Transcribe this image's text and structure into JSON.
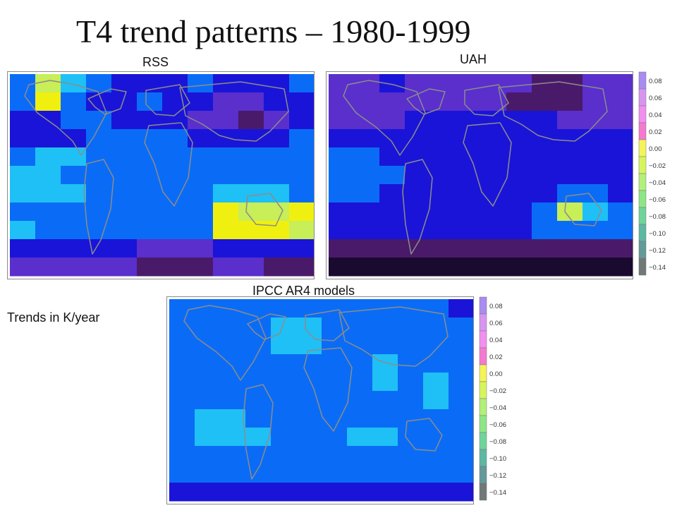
{
  "page": {
    "title": "T4 trend patterns – 1980-1999",
    "units_note": "Trends in K/year"
  },
  "colors": {
    "palette": [
      "#1a0a30",
      "#4a1a6a",
      "#5a2fcc",
      "#1a14d8",
      "#0a6cf6",
      "#1fc0f6",
      "#f0f010",
      "#c8ee58"
    ],
    "colorbar": [
      {
        "value": 0.08,
        "color": "#a98cf0"
      },
      {
        "value": 0.06,
        "color": "#d795f0"
      },
      {
        "value": 0.04,
        "color": "#f28ff0"
      },
      {
        "value": 0.02,
        "color": "#f579cf"
      },
      {
        "value": 0.0,
        "color": "#f4f45a"
      },
      {
        "value": -0.02,
        "color": "#d6f55c"
      },
      {
        "value": -0.04,
        "color": "#b2f078"
      },
      {
        "value": -0.06,
        "color": "#8de686"
      },
      {
        "value": -0.08,
        "color": "#6fd49a"
      },
      {
        "value": -0.1,
        "color": "#5cb8a2"
      },
      {
        "value": -0.12,
        "color": "#64999c"
      },
      {
        "value": -0.14,
        "color": "#707878"
      }
    ]
  },
  "chart_data": [
    {
      "type": "heatmap",
      "title": "RSS",
      "xlabel": "",
      "ylabel": "",
      "grid": false,
      "x": [
        -180,
        -150,
        -120,
        -90,
        -60,
        -30,
        0,
        30,
        60,
        90,
        120,
        150
      ],
      "y": [
        75,
        60,
        45,
        30,
        15,
        0,
        -15,
        -30,
        -45,
        -60,
        -70
      ],
      "colors": [
        "#1a0a30",
        "#4a1a6a",
        "#5a2fcc",
        "#1a14d8",
        "#0a6cf6",
        "#1fc0f6",
        "#f0f010",
        "#c8ee58"
      ],
      "z": [
        [
          4,
          7,
          5,
          4,
          3,
          3,
          3,
          4,
          3,
          3,
          3,
          4
        ],
        [
          4,
          6,
          4,
          3,
          3,
          4,
          3,
          3,
          2,
          2,
          3,
          3
        ],
        [
          3,
          3,
          4,
          4,
          3,
          3,
          3,
          2,
          2,
          1,
          2,
          3
        ],
        [
          3,
          3,
          3,
          4,
          4,
          4,
          4,
          3,
          3,
          3,
          3,
          4
        ],
        [
          4,
          5,
          5,
          4,
          4,
          4,
          4,
          4,
          4,
          4,
          4,
          4
        ],
        [
          5,
          5,
          4,
          4,
          4,
          4,
          4,
          4,
          4,
          4,
          4,
          4
        ],
        [
          5,
          5,
          5,
          4,
          4,
          4,
          4,
          4,
          5,
          5,
          5,
          4
        ],
        [
          4,
          4,
          4,
          4,
          4,
          4,
          4,
          4,
          6,
          7,
          7,
          6
        ],
        [
          5,
          4,
          4,
          4,
          4,
          4,
          4,
          4,
          6,
          6,
          6,
          7
        ],
        [
          3,
          3,
          3,
          3,
          3,
          2,
          2,
          2,
          3,
          3,
          3,
          3
        ],
        [
          2,
          2,
          2,
          2,
          2,
          1,
          1,
          1,
          2,
          2,
          1,
          1
        ]
      ]
    },
    {
      "type": "heatmap",
      "title": "UAH",
      "xlabel": "",
      "ylabel": "",
      "grid": false,
      "x": [
        -180,
        -150,
        -120,
        -90,
        -60,
        -30,
        0,
        30,
        60,
        90,
        120,
        150
      ],
      "y": [
        75,
        60,
        45,
        30,
        15,
        0,
        -15,
        -30,
        -45,
        -60,
        -70
      ],
      "colors": [
        "#1a0a30",
        "#4a1a6a",
        "#5a2fcc",
        "#1a14d8",
        "#0a6cf6",
        "#1fc0f6",
        "#f0f010",
        "#c8ee58"
      ],
      "z": [
        [
          2,
          2,
          3,
          2,
          2,
          2,
          2,
          2,
          1,
          1,
          2,
          2
        ],
        [
          2,
          2,
          2,
          2,
          2,
          2,
          2,
          1,
          1,
          1,
          2,
          2
        ],
        [
          2,
          2,
          2,
          3,
          3,
          3,
          3,
          3,
          3,
          2,
          2,
          2
        ],
        [
          3,
          3,
          3,
          3,
          3,
          3,
          3,
          3,
          3,
          3,
          3,
          3
        ],
        [
          4,
          4,
          3,
          3,
          3,
          3,
          3,
          3,
          3,
          3,
          3,
          3
        ],
        [
          4,
          4,
          4,
          3,
          3,
          3,
          3,
          3,
          3,
          3,
          3,
          3
        ],
        [
          4,
          4,
          3,
          3,
          3,
          3,
          3,
          3,
          3,
          4,
          4,
          3
        ],
        [
          3,
          3,
          3,
          3,
          3,
          3,
          3,
          3,
          4,
          7,
          5,
          4
        ],
        [
          3,
          3,
          3,
          3,
          3,
          3,
          3,
          3,
          4,
          4,
          4,
          4
        ],
        [
          1,
          1,
          1,
          1,
          1,
          1,
          1,
          1,
          1,
          1,
          1,
          1
        ],
        [
          0,
          0,
          0,
          0,
          0,
          0,
          0,
          0,
          0,
          0,
          0,
          0
        ]
      ]
    },
    {
      "type": "heatmap",
      "title": "IPCC AR4 models",
      "xlabel": "",
      "ylabel": "",
      "grid": false,
      "x": [
        -180,
        -150,
        -120,
        -90,
        -60,
        -30,
        0,
        30,
        60,
        90,
        120,
        150
      ],
      "y": [
        75,
        60,
        45,
        30,
        15,
        0,
        -15,
        -30,
        -45,
        -60,
        -70
      ],
      "colors": [
        "#1a0a30",
        "#4a1a6a",
        "#5a2fcc",
        "#1a14d8",
        "#0a6cf6",
        "#1fc0f6",
        "#f0f010",
        "#c8ee58"
      ],
      "z": [
        [
          4,
          4,
          4,
          4,
          4,
          4,
          4,
          4,
          4,
          4,
          4,
          3
        ],
        [
          4,
          4,
          4,
          4,
          5,
          5,
          4,
          4,
          4,
          4,
          4,
          4
        ],
        [
          4,
          4,
          4,
          4,
          5,
          5,
          4,
          4,
          4,
          4,
          4,
          4
        ],
        [
          4,
          4,
          4,
          4,
          4,
          4,
          4,
          4,
          5,
          4,
          4,
          4
        ],
        [
          4,
          4,
          4,
          4,
          4,
          4,
          4,
          4,
          5,
          4,
          5,
          4
        ],
        [
          4,
          4,
          4,
          4,
          4,
          4,
          4,
          4,
          4,
          4,
          5,
          4
        ],
        [
          4,
          5,
          5,
          4,
          4,
          4,
          4,
          4,
          4,
          4,
          4,
          4
        ],
        [
          4,
          5,
          5,
          5,
          4,
          4,
          4,
          5,
          5,
          4,
          4,
          4
        ],
        [
          4,
          4,
          4,
          4,
          4,
          4,
          4,
          4,
          4,
          4,
          4,
          4
        ],
        [
          4,
          4,
          4,
          4,
          4,
          4,
          4,
          4,
          4,
          4,
          4,
          4
        ],
        [
          3,
          3,
          3,
          3,
          3,
          3,
          3,
          3,
          3,
          3,
          3,
          3
        ]
      ]
    }
  ]
}
